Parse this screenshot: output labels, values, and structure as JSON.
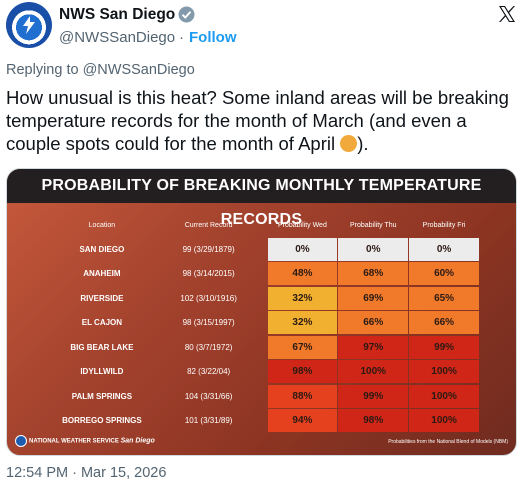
{
  "account": {
    "name": "NWS San Diego",
    "handle": "@NWSSanDiego",
    "separator": "·",
    "follow_label": "Follow"
  },
  "tweet": {
    "replying_to": "Replying to @NWSSanDiego",
    "text": "How unusual is this heat? Some inland areas will be breaking temperature records for the month of March (and even a couple spots could for the month of April",
    "text_end": ").",
    "timestamp": "12:54 PM · Mar 15, 2026"
  },
  "card": {
    "title": "PROBABILITY OF BREAKING MONTHLY TEMPERATURE RECORDS",
    "headers": [
      "Location",
      "Current Record",
      "Probability Wed",
      "Probability Thu",
      "Probability Fri"
    ],
    "rows": [
      {
        "location": "SAN DIEGO",
        "record": "99 (3/29/1879)",
        "wed": "0%",
        "thu": "0%",
        "fri": "0%"
      },
      {
        "location": "ANAHEIM",
        "record": "98 (3/14/2015)",
        "wed": "48%",
        "thu": "68%",
        "fri": "60%"
      },
      {
        "location": "RIVERSIDE",
        "record": "102 (3/10/1916)",
        "wed": "32%",
        "thu": "69%",
        "fri": "65%"
      },
      {
        "location": "EL CAJON",
        "record": "98 (3/15/1997)",
        "wed": "32%",
        "thu": "66%",
        "fri": "66%"
      },
      {
        "location": "BIG BEAR LAKE",
        "record": "80 (3/7/1972)",
        "wed": "67%",
        "thu": "97%",
        "fri": "99%"
      },
      {
        "location": "IDYLLWILD",
        "record": "82 (3/22/04)",
        "wed": "98%",
        "thu": "100%",
        "fri": "100%"
      },
      {
        "location": "PALM SPRINGS",
        "record": "104 (3/31/66)",
        "wed": "88%",
        "thu": "99%",
        "fri": "100%"
      },
      {
        "location": "BORREGO SPRINGS",
        "record": "101 (3/31/89)",
        "wed": "94%",
        "thu": "98%",
        "fri": "100%"
      }
    ],
    "footer_org": "NATIONAL WEATHER SERVICE",
    "footer_office": "San Diego",
    "footer_note": "Probabilities from the National Blend of Models (NBM)"
  },
  "colors": {
    "follow": "#1d9bf0",
    "zero": "#ececec",
    "low": "#f2b030",
    "mid": "#f07a2a",
    "high": "#e6411f",
    "max": "#d02617"
  }
}
